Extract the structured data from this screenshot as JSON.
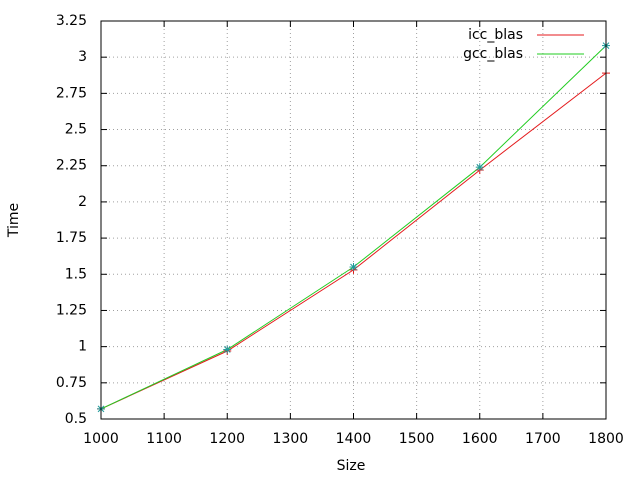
{
  "chart_data": {
    "type": "line",
    "title": "",
    "xlabel": "Size",
    "ylabel": "Time",
    "xlim": [
      1000,
      1800
    ],
    "ylim": [
      0.5,
      3.25
    ],
    "x_ticks": [
      1000,
      1100,
      1200,
      1300,
      1400,
      1500,
      1600,
      1700,
      1800
    ],
    "y_ticks": [
      "0.5",
      "0.75",
      "1",
      "1.25",
      "1.5",
      "1.75",
      "2",
      "2.25",
      "2.5",
      "2.75",
      "3",
      "3.25"
    ],
    "grid": true,
    "legend_position": "top-right",
    "x": [
      1000,
      1200,
      1400,
      1600,
      1800
    ],
    "series": [
      {
        "name": "icc_blas",
        "color": "#e41a1c",
        "marker": "plus",
        "values": [
          0.57,
          0.97,
          1.53,
          2.22,
          2.89
        ]
      },
      {
        "name": "gcc_blas",
        "color": "#22cc22",
        "marker": "star",
        "values": [
          0.57,
          0.98,
          1.55,
          2.24,
          3.08
        ]
      }
    ],
    "marker_color": "#1f9a9a"
  }
}
